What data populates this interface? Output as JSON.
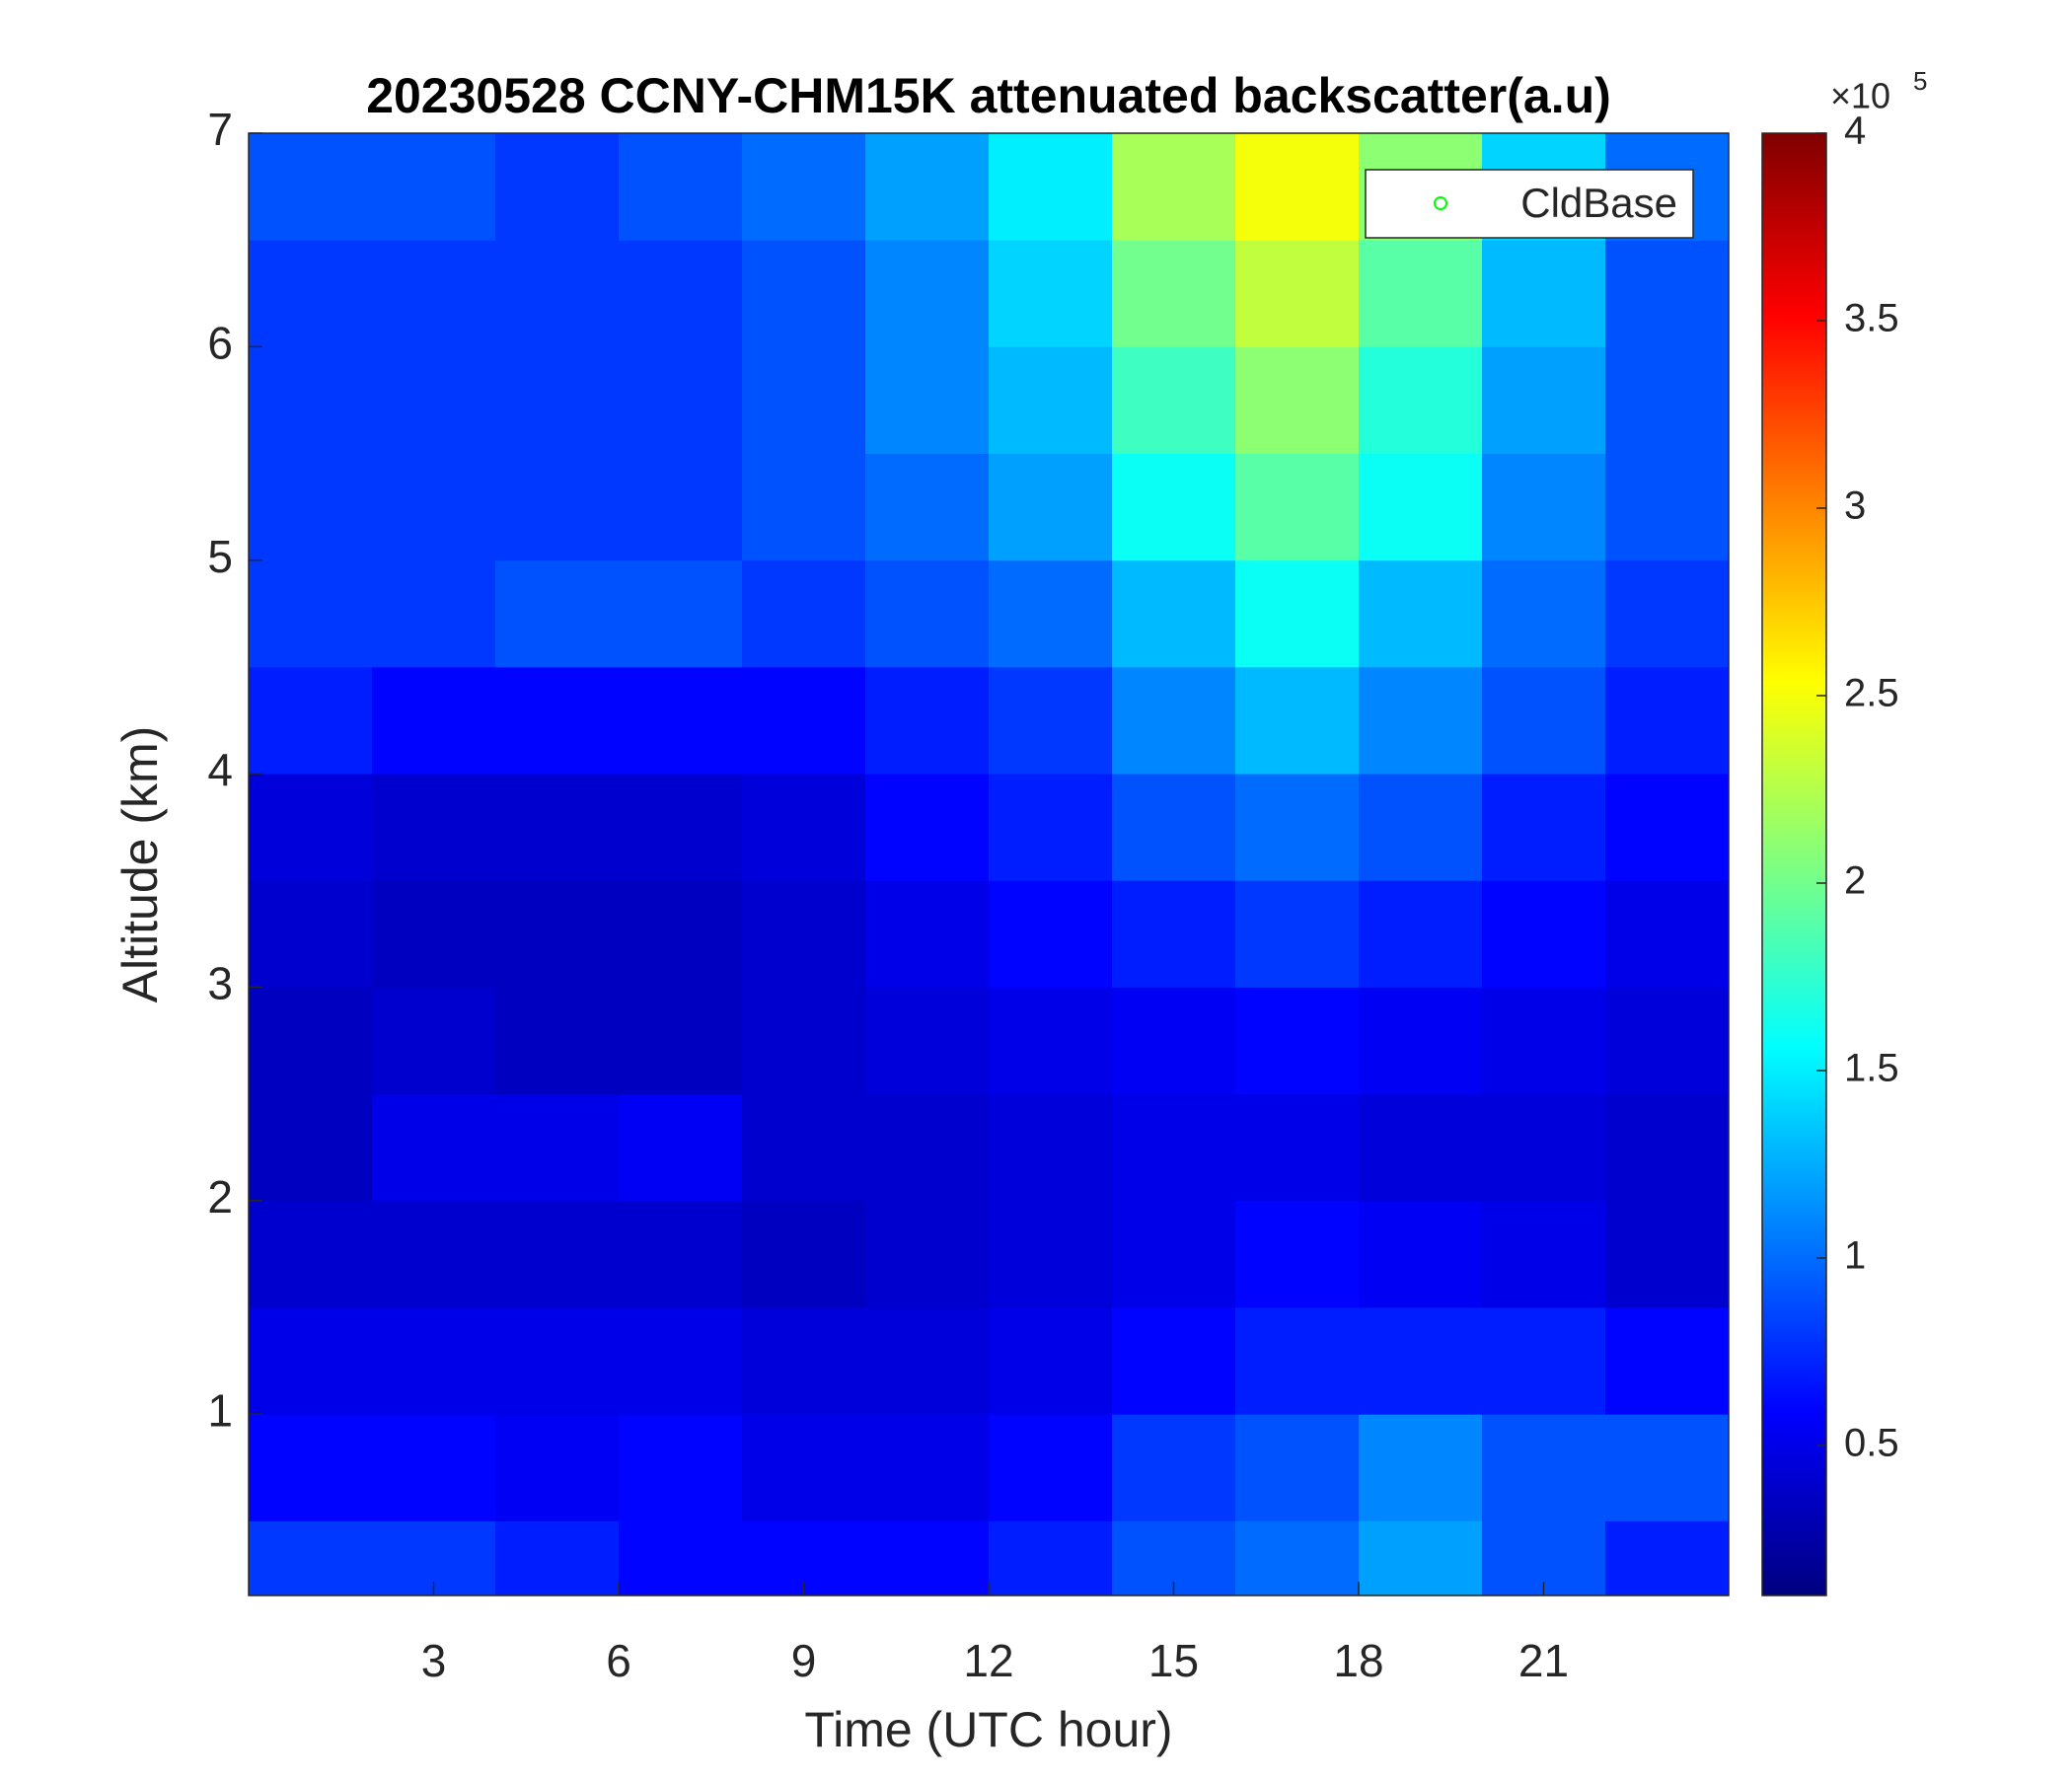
{
  "chart_data": {
    "type": "heatmap",
    "title": "20230528 CCNY-CHM15K attenuated backscatter(a.u)",
    "x_label": "Time (UTC hour)",
    "y_label": "Altitude (km)",
    "xlim": [
      0,
      24
    ],
    "ylim": [
      0.15,
      7
    ],
    "xticks": [
      3,
      6,
      9,
      12,
      15,
      18,
      21
    ],
    "yticks": [
      1,
      2,
      3,
      4,
      5,
      6,
      7
    ],
    "x_edges": [
      0,
      2,
      4,
      6,
      8,
      10,
      12,
      14,
      16,
      18,
      20,
      22,
      24
    ],
    "y_edges": [
      0.15,
      0.5,
      1,
      1.5,
      2,
      2.5,
      3,
      3.5,
      4,
      4.5,
      5,
      5.5,
      6,
      6.5,
      7
    ],
    "z": [
      [
        0.8,
        0.8,
        0.7,
        0.6,
        0.6,
        0.6,
        0.7,
        0.9,
        1.0,
        1.2,
        0.9,
        0.7
      ],
      [
        0.6,
        0.6,
        0.55,
        0.6,
        0.5,
        0.5,
        0.6,
        0.8,
        0.9,
        1.1,
        0.9,
        0.9
      ],
      [
        0.5,
        0.5,
        0.5,
        0.5,
        0.45,
        0.45,
        0.5,
        0.6,
        0.7,
        0.7,
        0.7,
        0.6
      ],
      [
        0.4,
        0.4,
        0.4,
        0.4,
        0.35,
        0.4,
        0.45,
        0.5,
        0.6,
        0.55,
        0.5,
        0.4
      ],
      [
        0.35,
        0.5,
        0.5,
        0.55,
        0.4,
        0.4,
        0.45,
        0.5,
        0.5,
        0.45,
        0.45,
        0.4
      ],
      [
        0.35,
        0.4,
        0.35,
        0.35,
        0.4,
        0.45,
        0.5,
        0.55,
        0.6,
        0.55,
        0.5,
        0.45
      ],
      [
        0.4,
        0.35,
        0.35,
        0.35,
        0.4,
        0.5,
        0.6,
        0.7,
        0.8,
        0.7,
        0.6,
        0.5
      ],
      [
        0.45,
        0.4,
        0.4,
        0.4,
        0.45,
        0.6,
        0.7,
        0.9,
        1.0,
        0.9,
        0.7,
        0.6
      ],
      [
        0.7,
        0.6,
        0.6,
        0.6,
        0.6,
        0.7,
        0.8,
        1.1,
        1.3,
        1.1,
        0.9,
        0.7
      ],
      [
        0.8,
        0.8,
        0.9,
        0.9,
        0.8,
        0.9,
        1.0,
        1.3,
        1.6,
        1.3,
        1.0,
        0.8
      ],
      [
        0.8,
        0.8,
        0.8,
        0.8,
        0.9,
        1.0,
        1.2,
        1.6,
        1.9,
        1.6,
        1.1,
        0.9
      ],
      [
        0.8,
        0.8,
        0.8,
        0.8,
        0.9,
        1.1,
        1.3,
        1.8,
        2.1,
        1.7,
        1.2,
        0.9
      ],
      [
        0.8,
        0.8,
        0.8,
        0.8,
        0.9,
        1.1,
        1.4,
        2.0,
        2.3,
        1.9,
        1.3,
        0.9
      ],
      [
        0.9,
        0.9,
        0.8,
        0.9,
        1.0,
        1.2,
        1.5,
        2.2,
        2.5,
        2.1,
        1.4,
        1.0
      ]
    ],
    "clim": [
      0.1,
      4
    ],
    "cticks": [
      0.5,
      1,
      1.5,
      2,
      2.5,
      3,
      3.5,
      4
    ],
    "colorbar_multiplier": "×10",
    "colorbar_exponent": "5",
    "colormap": "jet",
    "legend": {
      "name": "CldBase",
      "color": "#00ff00",
      "x": [],
      "y": [],
      "position": "northeast"
    }
  }
}
